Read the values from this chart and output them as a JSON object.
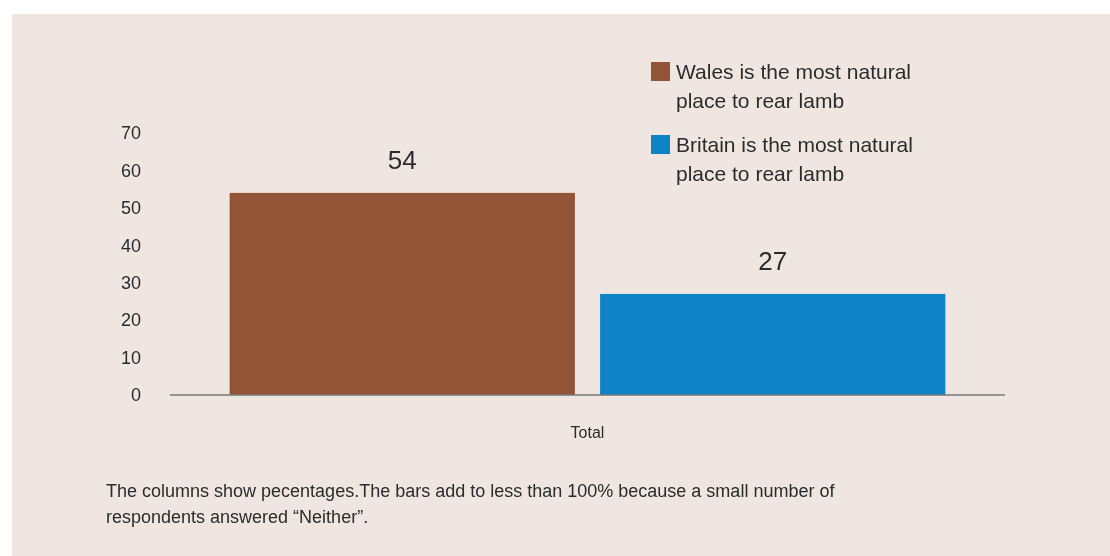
{
  "chart_data": {
    "type": "bar",
    "categories": [
      "Total"
    ],
    "series": [
      {
        "name": "Wales is the most natural place to rear lamb",
        "color": "#925337",
        "values": [
          54
        ]
      },
      {
        "name": "Britain is the most natural place to rear lamb",
        "color": "#0e83c6",
        "values": [
          27
        ]
      }
    ],
    "ylim": [
      0,
      70
    ],
    "yticks": [
      0,
      10,
      20,
      30,
      40,
      50,
      60,
      70
    ],
    "grid": false,
    "legend": "top right",
    "data_labels": true,
    "annotations": [
      "The columns show pecentages.The bars add to less than 100% because a small number of respondents answered “Neither”."
    ]
  }
}
